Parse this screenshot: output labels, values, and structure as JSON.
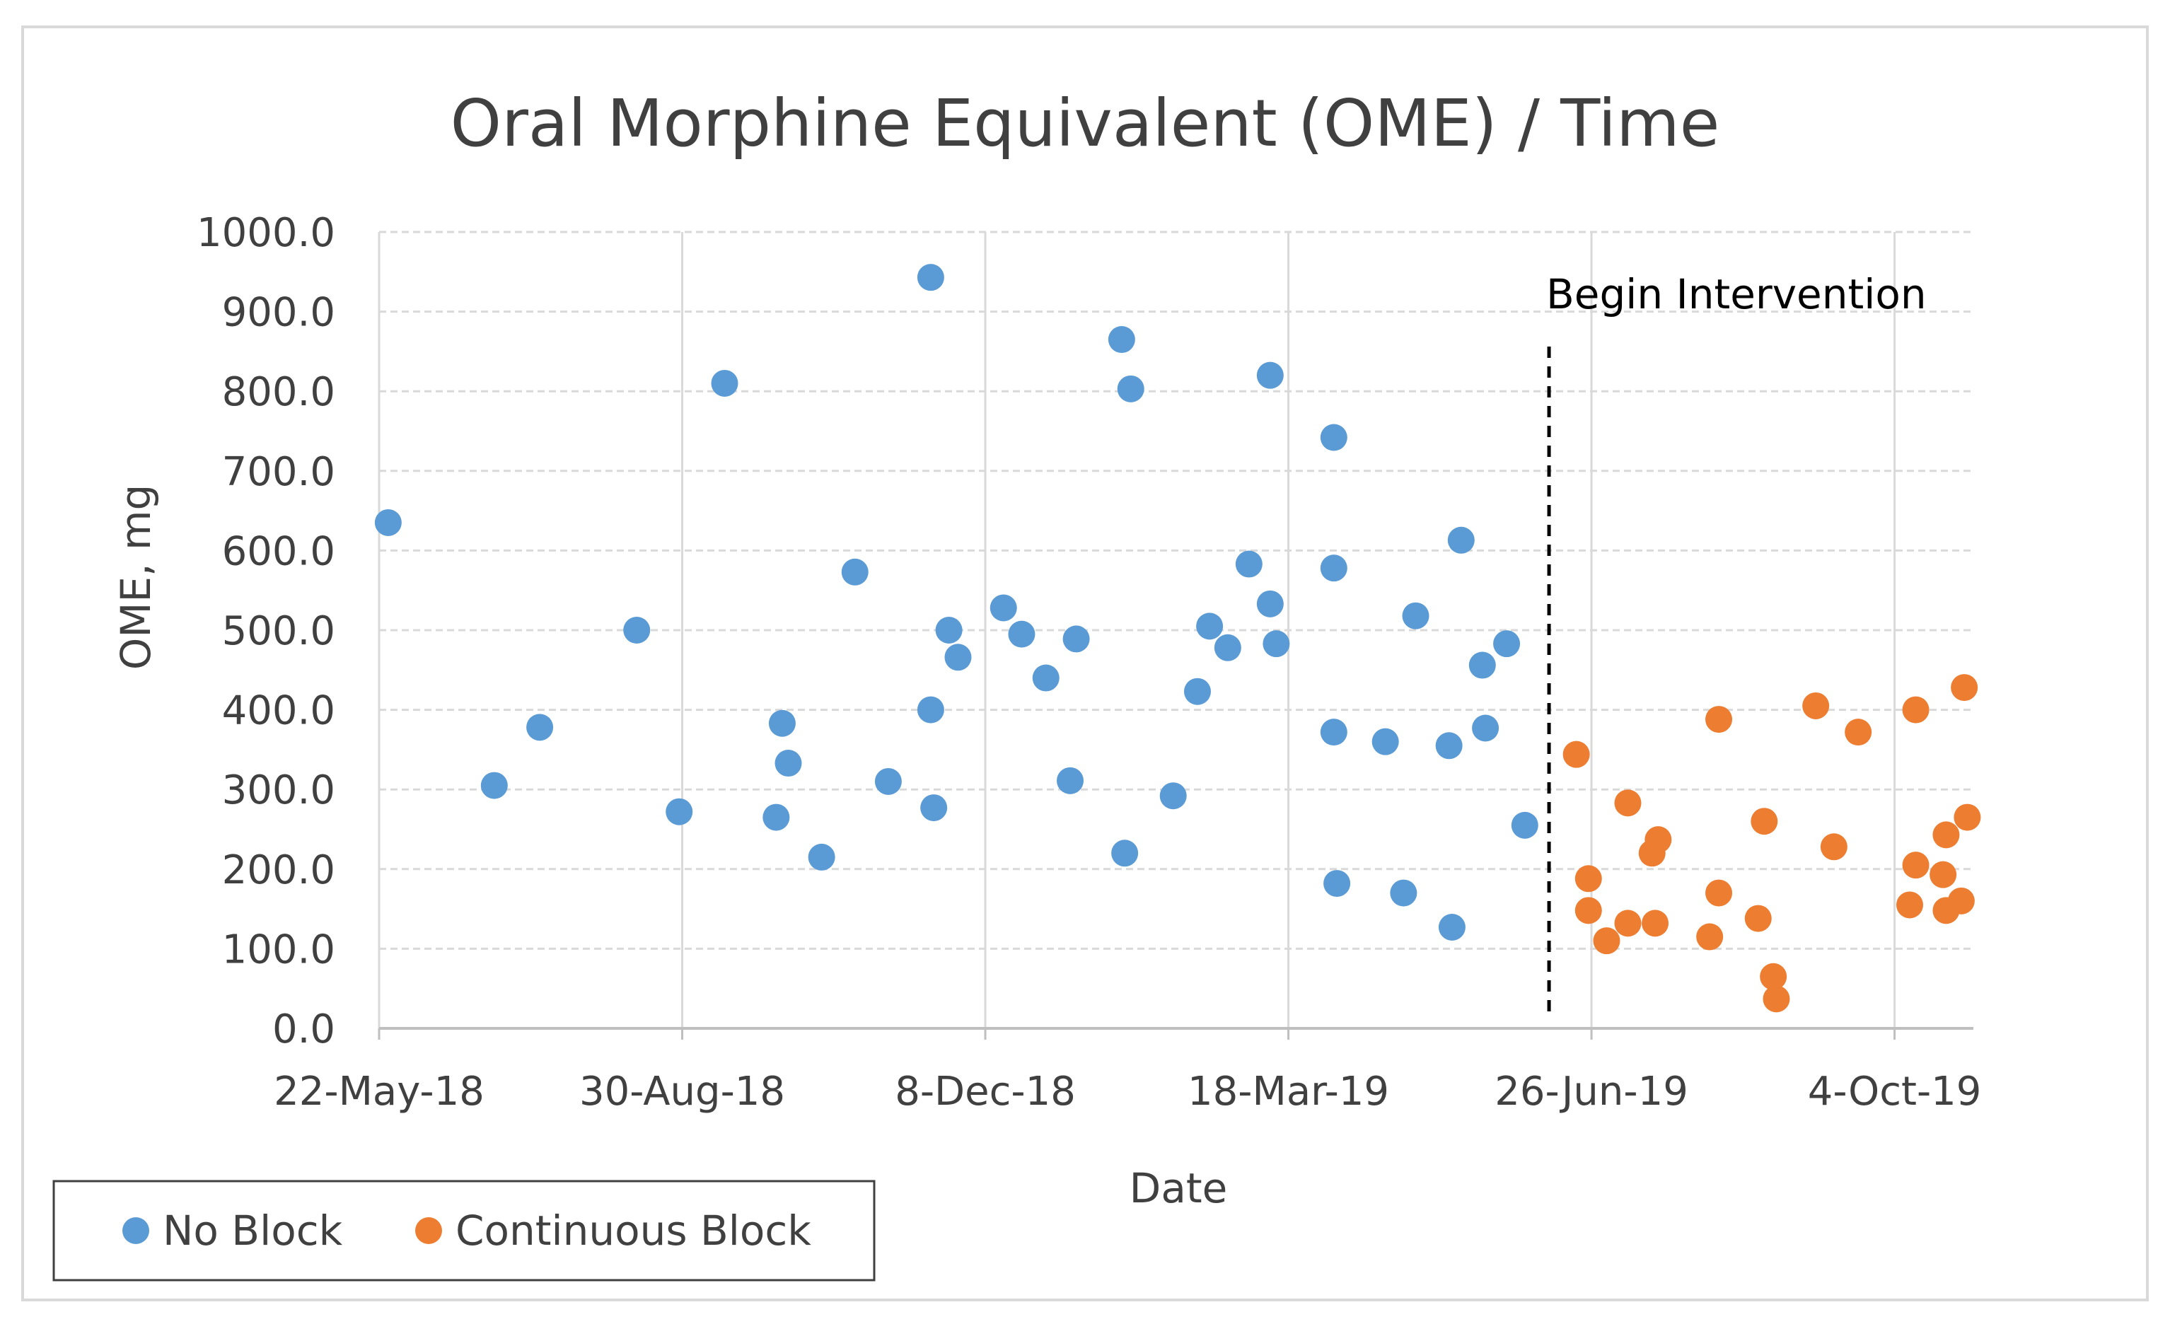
{
  "chart_data": {
    "type": "scatter",
    "title": "Oral Morphine Equivalent (OME) / Time",
    "xlabel": "Date",
    "ylabel": "OME, mg",
    "xlim_days": [
      0,
      526
    ],
    "x_tick_days": [
      0,
      100,
      200,
      300,
      400,
      500
    ],
    "x_tick_labels": [
      "22-May-18",
      "30-Aug-18",
      "8-Dec-18",
      "18-Mar-19",
      "26-Jun-19",
      "4-Oct-19"
    ],
    "x_origin_date": "22-May-18",
    "ylim": [
      0,
      1000
    ],
    "y_ticks": [
      0,
      100,
      200,
      300,
      400,
      500,
      600,
      700,
      800,
      900,
      1000
    ],
    "y_tick_labels": [
      "0.0",
      "100.0",
      "200.0",
      "300.0",
      "400.0",
      "500.0",
      "600.0",
      "700.0",
      "800.0",
      "900.0",
      "1000.0"
    ],
    "grid": true,
    "legend_position": "bottom-left",
    "annotation": {
      "text": "Begin Intervention",
      "x_day": 386
    },
    "colors": {
      "no_block": "#5B9BD5",
      "continuous_block": "#ED7D31",
      "grid": "#d9d9d9",
      "axis": "#bfbfbf",
      "text": "#404040"
    },
    "series": [
      {
        "name": "No Block",
        "color": "#5B9BD5",
        "points": [
          [
            3,
            635
          ],
          [
            38,
            305
          ],
          [
            53,
            378
          ],
          [
            85,
            500
          ],
          [
            99,
            272
          ],
          [
            114,
            810
          ],
          [
            131,
            265
          ],
          [
            133,
            383
          ],
          [
            135,
            333
          ],
          [
            146,
            215
          ],
          [
            157,
            573
          ],
          [
            168,
            310
          ],
          [
            182,
            943
          ],
          [
            182,
            400
          ],
          [
            183,
            277
          ],
          [
            188,
            500
          ],
          [
            191,
            466
          ],
          [
            206,
            528
          ],
          [
            212,
            495
          ],
          [
            220,
            440
          ],
          [
            228,
            311
          ],
          [
            230,
            489
          ],
          [
            245,
            865
          ],
          [
            246,
            220
          ],
          [
            248,
            803
          ],
          [
            262,
            292
          ],
          [
            270,
            423
          ],
          [
            274,
            505
          ],
          [
            280,
            478
          ],
          [
            287,
            583
          ],
          [
            294,
            820
          ],
          [
            294,
            533
          ],
          [
            296,
            483
          ],
          [
            315,
            742
          ],
          [
            315,
            578
          ],
          [
            315,
            372
          ],
          [
            316,
            182
          ],
          [
            332,
            360
          ],
          [
            338,
            170
          ],
          [
            342,
            518
          ],
          [
            353,
            355
          ],
          [
            354,
            127
          ],
          [
            357,
            613
          ],
          [
            364,
            456
          ],
          [
            365,
            377
          ],
          [
            372,
            483
          ],
          [
            378,
            255
          ]
        ]
      },
      {
        "name": "Continuous Block",
        "color": "#ED7D31",
        "points": [
          [
            395,
            344
          ],
          [
            399,
            188
          ],
          [
            399,
            148
          ],
          [
            405,
            110
          ],
          [
            412,
            283
          ],
          [
            412,
            132
          ],
          [
            420,
            220
          ],
          [
            422,
            237
          ],
          [
            421,
            132
          ],
          [
            439,
            115
          ],
          [
            442,
            388
          ],
          [
            442,
            170
          ],
          [
            455,
            138
          ],
          [
            457,
            260
          ],
          [
            460,
            65
          ],
          [
            461,
            37
          ],
          [
            474,
            405
          ],
          [
            480,
            228
          ],
          [
            488,
            372
          ],
          [
            505,
            155
          ],
          [
            507,
            400
          ],
          [
            507,
            205
          ],
          [
            516,
            193
          ],
          [
            517,
            243
          ],
          [
            517,
            148
          ],
          [
            522,
            160
          ],
          [
            524,
            265
          ],
          [
            523,
            428
          ]
        ]
      }
    ]
  }
}
